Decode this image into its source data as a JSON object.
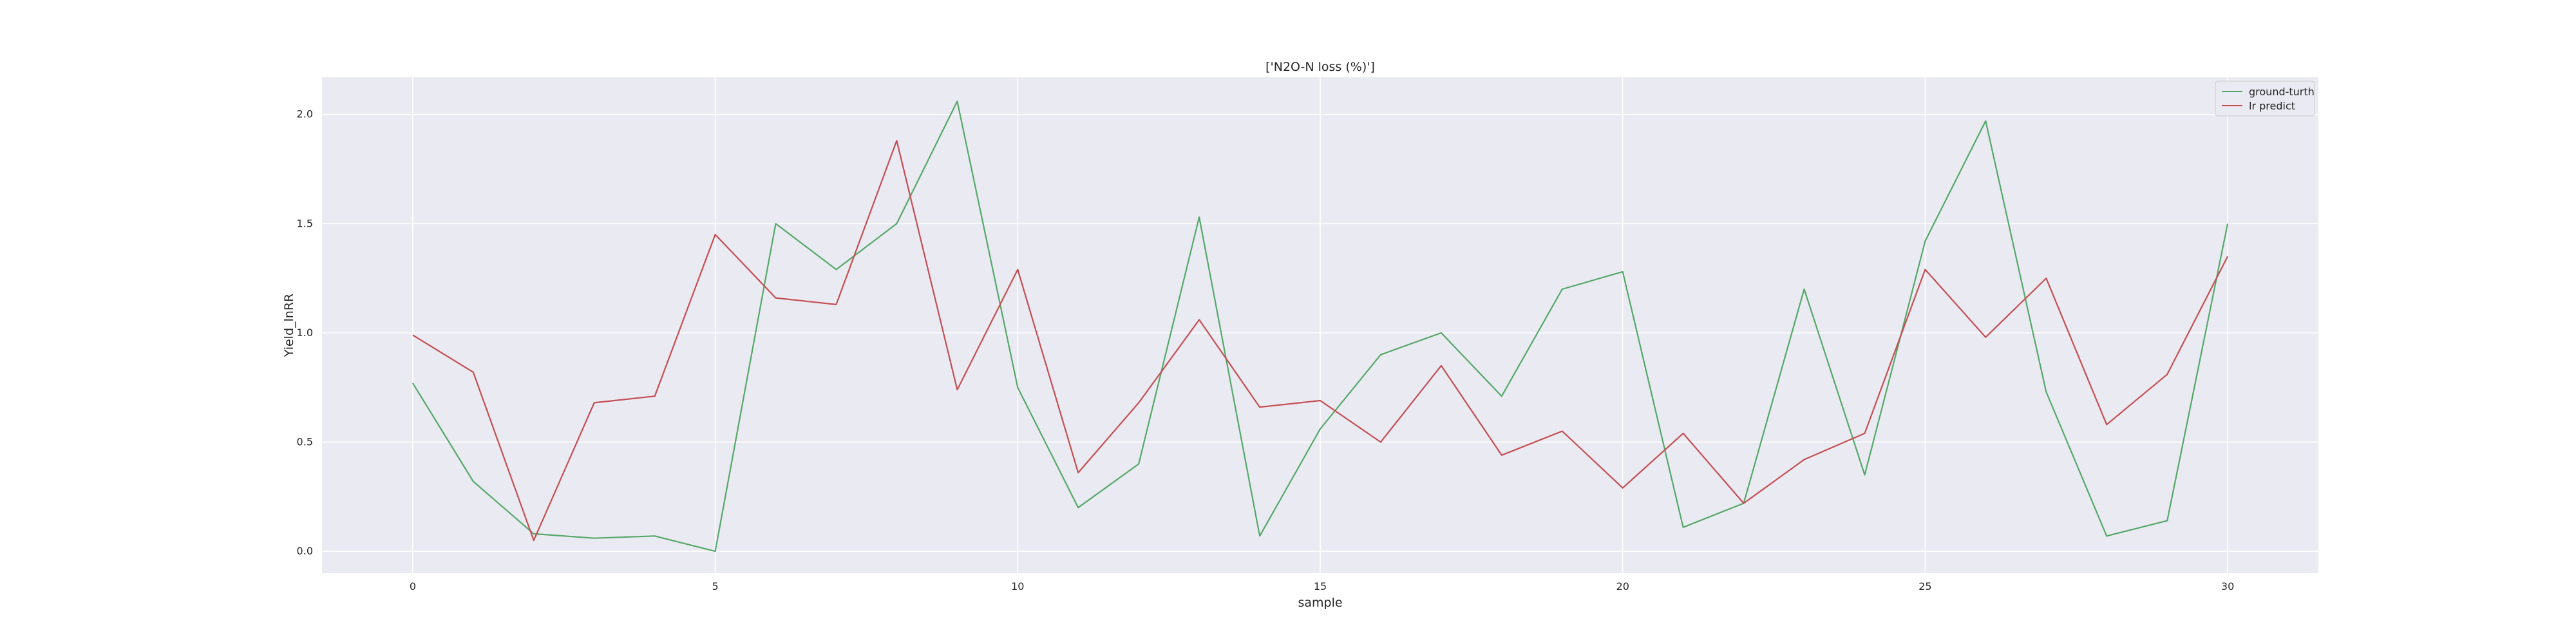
{
  "chart_data": {
    "type": "line",
    "title": "['N2O-N loss (%)']",
    "xlabel": "sample",
    "ylabel": "Yield_lnRR",
    "xlim": [
      -1.5,
      31.5
    ],
    "ylim": [
      -0.1,
      2.17
    ],
    "x_ticks": [
      0,
      5,
      10,
      15,
      20,
      25,
      30
    ],
    "y_ticks": [
      0.0,
      0.5,
      1.0,
      1.5,
      2.0
    ],
    "x_tick_labels": [
      "0",
      "5",
      "10",
      "15",
      "20",
      "25",
      "30"
    ],
    "y_tick_labels": [
      "0.0",
      "0.5",
      "1.0",
      "1.5",
      "2.0"
    ],
    "grid": true,
    "legend_position": "top-right",
    "background_color": "#eaeaf2",
    "x": [
      0,
      1,
      2,
      3,
      4,
      5,
      6,
      7,
      8,
      9,
      10,
      11,
      12,
      13,
      14,
      15,
      16,
      17,
      18,
      19,
      20,
      21,
      22,
      23,
      24,
      25,
      26,
      27,
      28,
      29,
      30
    ],
    "series": [
      {
        "name": "ground-turth",
        "color": "#55a868",
        "values": [
          0.77,
          0.32,
          0.08,
          0.06,
          0.07,
          0.0,
          1.5,
          1.29,
          1.5,
          2.06,
          0.75,
          0.2,
          0.4,
          1.53,
          0.07,
          0.56,
          0.9,
          1.0,
          0.71,
          1.2,
          1.28,
          0.11,
          0.22,
          1.2,
          0.35,
          1.42,
          1.97,
          0.73,
          0.07,
          0.14,
          1.5
        ]
      },
      {
        "name": "lr predict",
        "color": "#c44e52",
        "values": [
          0.99,
          0.82,
          0.05,
          0.68,
          0.71,
          1.45,
          1.16,
          1.13,
          1.88,
          0.74,
          1.29,
          0.36,
          0.68,
          1.06,
          0.66,
          0.69,
          0.5,
          0.85,
          0.44,
          0.55,
          0.29,
          0.54,
          0.22,
          0.42,
          0.54,
          1.29,
          0.98,
          1.25,
          0.58,
          0.81,
          1.35
        ]
      }
    ]
  }
}
